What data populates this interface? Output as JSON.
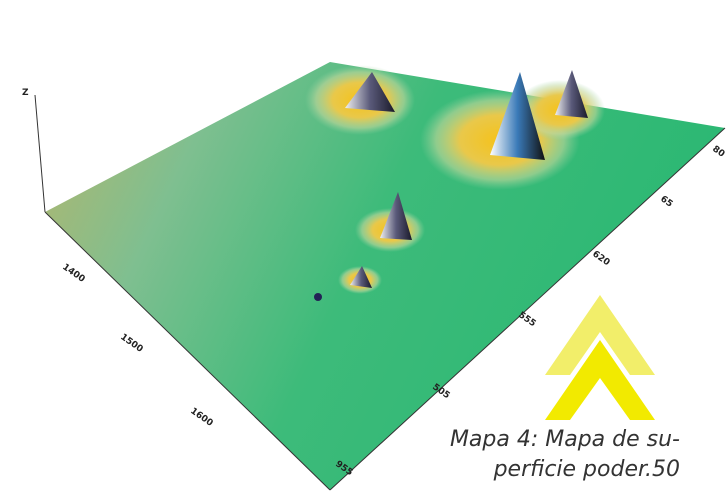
{
  "figure": {
    "caption": [
      "Mapa 4: Mapa de su-",
      "perficie poder.50"
    ],
    "z_axis_label": "Z",
    "left_axis_ticks": [
      "1400",
      "1500",
      "1600"
    ],
    "front_axis_ticks": [
      "955",
      "505",
      "555",
      "620",
      "65",
      "80"
    ]
  }
}
